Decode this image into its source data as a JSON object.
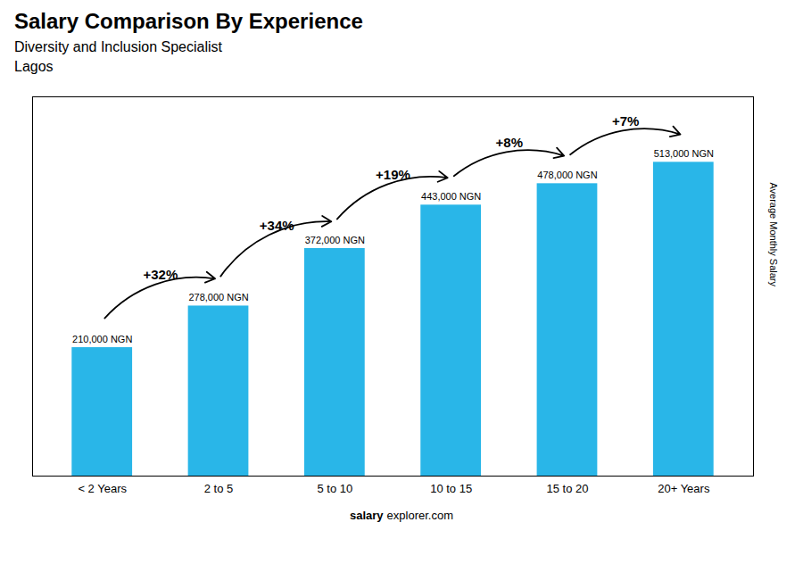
{
  "chart_data": {
    "type": "bar",
    "title": "Salary Comparison By Experience",
    "subtitle": "Diversity and Inclusion Specialist",
    "annotations": [
      "Lagos",
      "salary",
      "explorer.com"
    ],
    "ylabel": "Average Monthly Salary",
    "categories": [
      "< 2 Years",
      "2 to 5",
      "5 to 10",
      "10 to 15",
      "15 to 20",
      "20+ Years"
    ],
    "values": [
      210000,
      278000,
      372000,
      443000,
      478000,
      513000
    ],
    "value_labels": [
      "210,000 NGN",
      "278,000 NGN",
      "372,000 NGN",
      "443,000 NGN",
      "478,000 NGN",
      "513,000 NGN"
    ],
    "change_labels": [
      null,
      "+32%",
      "+34%",
      "+19%",
      "+8%",
      "+7%"
    ],
    "data_labels": true,
    "color": "#29b6e8",
    "ylim": [
      0,
      620000
    ],
    "tick_labels": "x",
    "grid": false
  }
}
